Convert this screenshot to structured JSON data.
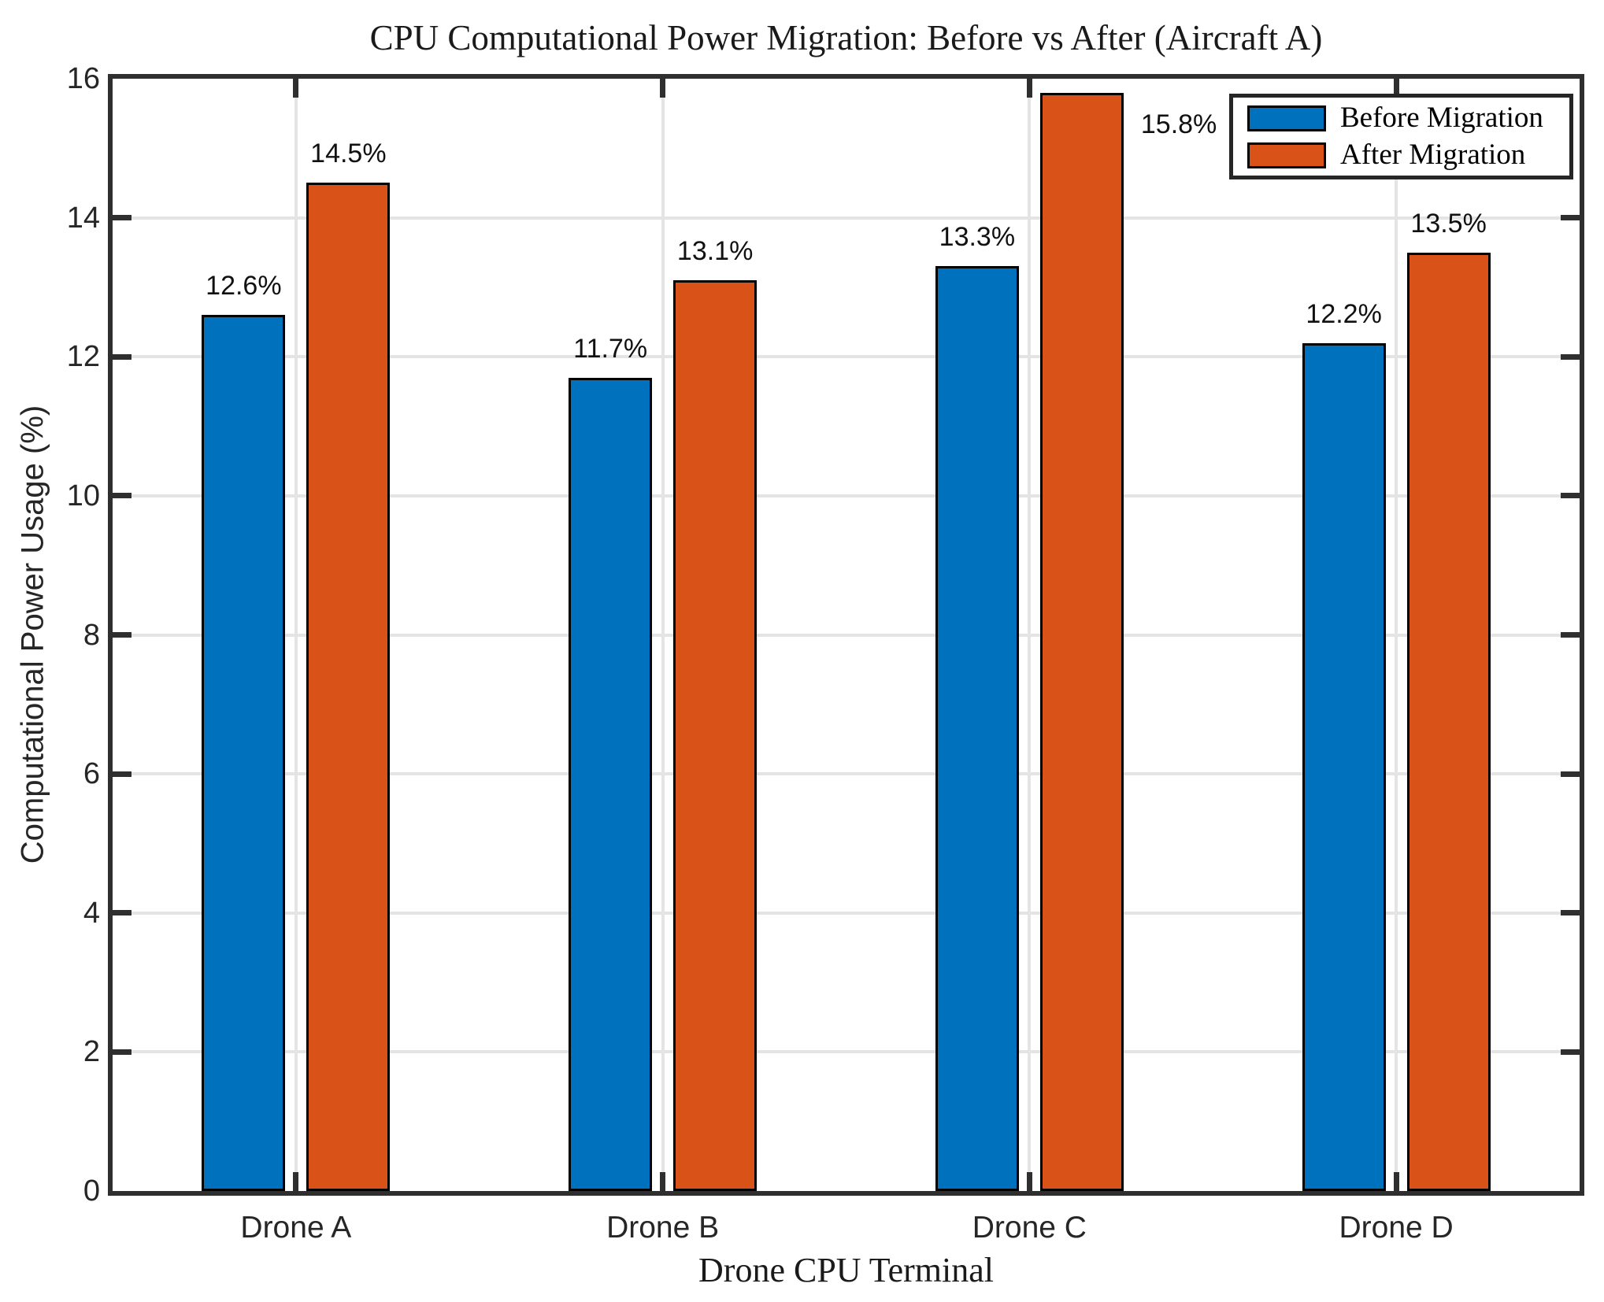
{
  "chart_data": {
    "type": "bar",
    "title": "CPU Computational Power Migration: Before vs After (Aircraft A)",
    "xlabel": "Drone CPU Terminal",
    "ylabel": "Computational Power Usage (%)",
    "categories": [
      "Drone A",
      "Drone B",
      "Drone C",
      "Drone D"
    ],
    "series": [
      {
        "name": "Before Migration",
        "color": "#0072BD",
        "values": [
          12.6,
          11.7,
          13.3,
          12.2
        ],
        "data_labels": [
          "12.6%",
          "11.7%",
          "13.3%",
          "12.2%"
        ],
        "label_placements": [
          "above",
          "above",
          "above",
          "above"
        ]
      },
      {
        "name": "After Migration",
        "color": "#D95319",
        "values": [
          14.5,
          13.1,
          15.8,
          13.5
        ],
        "data_labels": [
          "14.5%",
          "13.1%",
          "15.8%",
          "13.5%"
        ],
        "label_placements": [
          "above",
          "above",
          "right",
          "above"
        ]
      }
    ],
    "ylim": [
      0,
      16
    ],
    "y_ticks": [
      0,
      2,
      4,
      6,
      8,
      10,
      12,
      14,
      16
    ],
    "y_tick_labels": [
      "0",
      "2",
      "4",
      "6",
      "8",
      "10",
      "12",
      "14",
      "16"
    ],
    "grid": true,
    "legend_position": "top-right",
    "bar_edge_color": "#000000",
    "axis_color": "#2f2f2f",
    "grid_color": "#e4e4e4"
  },
  "legend": {
    "items": [
      {
        "label": "Before Migration",
        "color": "#0072BD"
      },
      {
        "label": "After Migration",
        "color": "#D95319"
      }
    ]
  }
}
